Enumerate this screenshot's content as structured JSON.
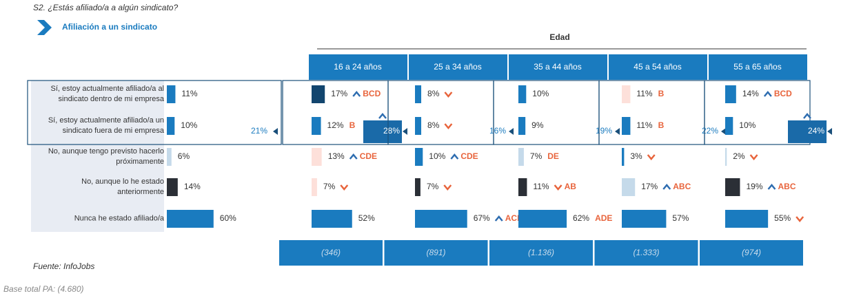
{
  "question": "S2. ¿Estás afiliado/a a algún sindicato?",
  "source": "Fuente: InfoJobs",
  "base": "Base total PA: (4.680)",
  "chart_data": {
    "type": "bar",
    "title": "Afiliación a un sindicato",
    "group_label": "Edad",
    "categories": [
      "Sí, estoy actualmente afiliado/a al sindicato dentro de mi empresa",
      "Sí, estoy actualmente afiliado/a un sindicato fuera de mi empresa",
      "No, aunque tengo previsto hacerlo próximamente",
      "No, aunque lo he estado anteriormente",
      "Nunca he estado afiliado/a"
    ],
    "total": {
      "values": [
        11,
        10,
        6,
        14,
        60
      ],
      "value_labels": [
        "11%",
        "10%",
        "6%",
        "14%",
        "60%"
      ],
      "colors": [
        "#1a7bbf",
        "#1a7bbf",
        "#c5daea",
        "#2b2f36",
        "#1a7bbf"
      ],
      "affiliated": {
        "value": 21,
        "label": "21%"
      }
    },
    "series": [
      {
        "name": "16 a 24 años",
        "base": "(346)",
        "values": [
          17,
          12,
          13,
          7,
          52
        ],
        "value_labels": [
          "17%",
          "12%",
          "13%",
          "7%",
          "52%"
        ],
        "colors": [
          "#12456e",
          "#1a7bbf",
          "#fde0da",
          "#fde0da",
          "#1a7bbf"
        ],
        "significance": [
          {
            "arrow": "up",
            "letters": "BCD"
          },
          {
            "letters": "B"
          },
          {
            "arrow": "up",
            "letters": "CDE"
          },
          {
            "arrow": "down"
          },
          null
        ],
        "affiliated": {
          "value": 28,
          "label": "28%",
          "arrow": "up"
        }
      },
      {
        "name": "25 a 34 años",
        "base": "(891)",
        "values": [
          8,
          8,
          10,
          7,
          67
        ],
        "value_labels": [
          "8%",
          "8%",
          "10%",
          "7%",
          "67%"
        ],
        "colors": [
          "#1a7bbf",
          "#1a7bbf",
          "#1a7bbf",
          "#2b2f36",
          "#1a7bbf"
        ],
        "significance": [
          {
            "arrow": "down"
          },
          {
            "arrow": "down"
          },
          {
            "arrow": "up",
            "letters": "CDE"
          },
          {
            "arrow": "down"
          },
          {
            "arrow": "up",
            "letters": "ACDE"
          }
        ],
        "affiliated": {
          "value": 16,
          "label": "16%"
        }
      },
      {
        "name": "35 a 44 años",
        "base": "(1.136)",
        "values": [
          10,
          9,
          7,
          11,
          62
        ],
        "value_labels": [
          "10%",
          "9%",
          "7%",
          "11%",
          "62%"
        ],
        "colors": [
          "#1a7bbf",
          "#1a7bbf",
          "#c5daea",
          "#2b2f36",
          "#1a7bbf"
        ],
        "significance": [
          null,
          null,
          {
            "letters": "DE"
          },
          {
            "arrow": "down",
            "letters": "AB"
          },
          {
            "letters": "ADE"
          }
        ],
        "affiliated": {
          "value": 19,
          "label": "19%"
        }
      },
      {
        "name": "45 a 54 años",
        "base": "(1.333)",
        "values": [
          11,
          11,
          3,
          17,
          57
        ],
        "value_labels": [
          "11%",
          "11%",
          "3%",
          "17%",
          "57%"
        ],
        "colors": [
          "#fde0da",
          "#1a7bbf",
          "#1a7bbf",
          "#c5daea",
          "#1a7bbf"
        ],
        "significance": [
          {
            "letters": "B"
          },
          {
            "letters": "B"
          },
          {
            "arrow": "down"
          },
          {
            "arrow": "up",
            "letters": "ABC"
          },
          null
        ],
        "affiliated": {
          "value": 22,
          "label": "22%"
        }
      },
      {
        "name": "55 a 65 años",
        "base": "(974)",
        "values": [
          14,
          10,
          2,
          19,
          55
        ],
        "value_labels": [
          "14%",
          "10%",
          "2%",
          "19%",
          "55%"
        ],
        "colors": [
          "#1a7bbf",
          "#1a7bbf",
          "#c5daea",
          "#2b2f36",
          "#1a7bbf"
        ],
        "significance": [
          {
            "arrow": "up",
            "letters": "BCD"
          },
          null,
          {
            "arrow": "down"
          },
          {
            "arrow": "up",
            "letters": "ABC"
          },
          {
            "arrow": "down"
          }
        ],
        "affiliated": {
          "value": 24,
          "label": "24%",
          "arrow": "up"
        }
      }
    ]
  }
}
